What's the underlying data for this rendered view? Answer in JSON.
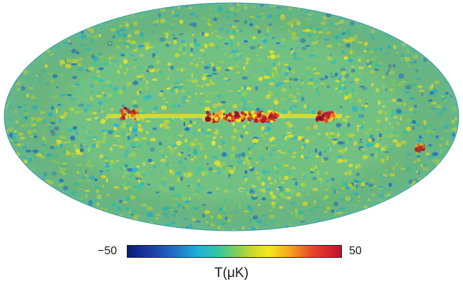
{
  "sky_map": {
    "projection": "mollweide",
    "background_color": "#6fbf86",
    "galactic_plane_color": "#c0122e",
    "edge_color": "#3fa3b4"
  },
  "colorbar": {
    "min_label": "−50",
    "max_label": "50",
    "min_value": -50,
    "max_value": 50,
    "colors": [
      "#0a1a7a",
      "#1f6fc8",
      "#1fb2d8",
      "#74cf62",
      "#f6e81e",
      "#f7a31f",
      "#e8422a",
      "#c0122e"
    ]
  },
  "unit_label": "T(μK)"
}
